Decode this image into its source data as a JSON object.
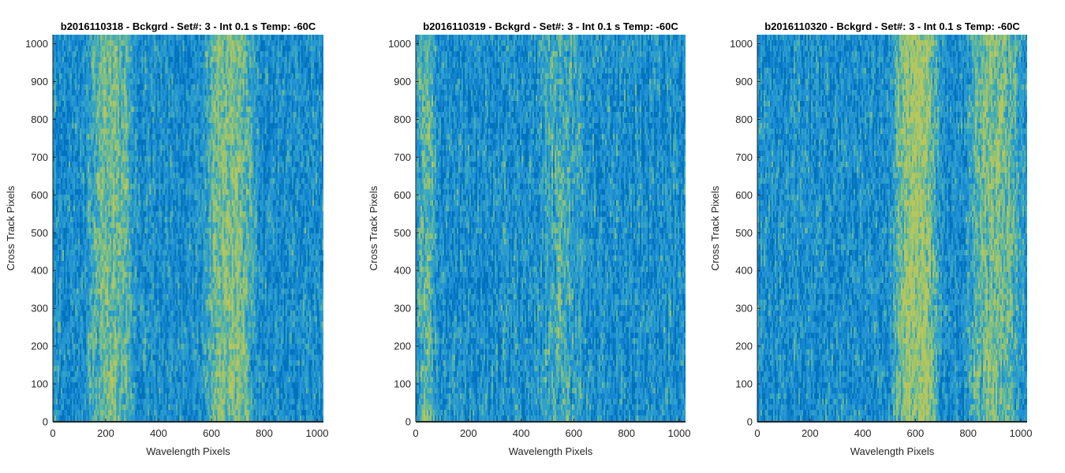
{
  "chart_data": [
    {
      "type": "heatmap",
      "title": "b2016110318 - Bckgrd - Set#: 3 - Int 0.1 s Temp: -60C",
      "xlabel": "Wavelength Pixels",
      "ylabel": "Cross Track Pixels",
      "xlim": [
        0,
        1024
      ],
      "ylim": [
        0,
        1024
      ],
      "xticks": [
        "0",
        "200",
        "400",
        "600",
        "800",
        "1000"
      ],
      "yticks": [
        "0",
        "100",
        "200",
        "300",
        "400",
        "500",
        "600",
        "700",
        "800",
        "900",
        "1000"
      ],
      "colormap": [
        "#0072bd",
        "#1e8fd6",
        "#36a7c2",
        "#7dbf84",
        "#b8c65c"
      ],
      "bright_bands": [
        [
          120,
          320,
          0.55
        ],
        [
          560,
          780,
          0.6
        ]
      ]
    },
    {
      "type": "heatmap",
      "title": "b2016110319 - Bckgrd - Set#: 3 - Int 0.1 s Temp: -60C",
      "xlabel": "Wavelength Pixels",
      "ylabel": "Cross Track Pixels",
      "xlim": [
        0,
        1024
      ],
      "ylim": [
        0,
        1024
      ],
      "xticks": [
        "0",
        "200",
        "400",
        "600",
        "800",
        "1000"
      ],
      "yticks": [
        "0",
        "100",
        "200",
        "300",
        "400",
        "500",
        "600",
        "700",
        "800",
        "900",
        "1000"
      ],
      "colormap": [
        "#0072bd",
        "#1e8fd6",
        "#36a7c2",
        "#7dbf84",
        "#b8c65c"
      ],
      "bright_bands": [
        [
          0,
          80,
          0.45
        ],
        [
          450,
          650,
          0.3
        ]
      ]
    },
    {
      "type": "heatmap",
      "title": "b2016110320 - Bckgrd - Set#: 3 - Int 0.1 s Temp: -60C",
      "xlabel": "Wavelength Pixels",
      "ylabel": "Cross Track Pixels",
      "xlim": [
        0,
        1024
      ],
      "ylim": [
        0,
        1024
      ],
      "xticks": [
        "0",
        "200",
        "400",
        "600",
        "800",
        "1000"
      ],
      "yticks": [
        "0",
        "100",
        "200",
        "300",
        "400",
        "500",
        "600",
        "700",
        "800",
        "900",
        "1000"
      ],
      "colormap": [
        "#0072bd",
        "#1e8fd6",
        "#36a7c2",
        "#7dbf84",
        "#b8c65c"
      ],
      "bright_bands": [
        [
          500,
          700,
          0.75
        ],
        [
          780,
          1024,
          0.55
        ]
      ]
    }
  ]
}
